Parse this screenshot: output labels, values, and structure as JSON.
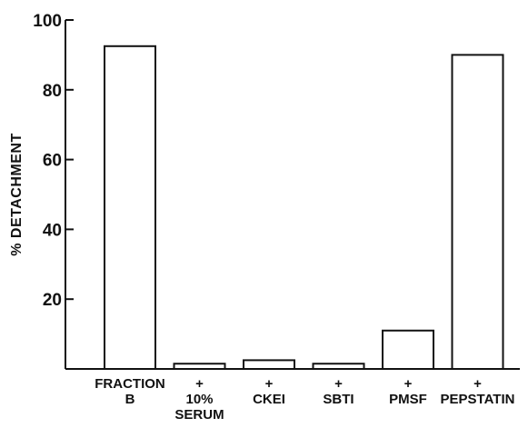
{
  "chart_data": {
    "type": "bar",
    "categories": [
      [
        "FRACTION",
        "B"
      ],
      [
        "+",
        "10%",
        "SERUM"
      ],
      [
        "+",
        "CKEI"
      ],
      [
        "+",
        "SBTI"
      ],
      [
        "+",
        "PMSF"
      ],
      [
        "+",
        "PEPSTATIN"
      ]
    ],
    "values": [
      92.5,
      1.5,
      2.5,
      1.5,
      11,
      90
    ],
    "title": "",
    "xlabel": "",
    "ylabel": "% DETACHMENT",
    "ylim": [
      0,
      100
    ],
    "yticks": [
      20,
      40,
      60,
      80,
      100
    ],
    "ytick_labels": [
      "20",
      "40",
      "60",
      "80",
      "100"
    ],
    "grid": false,
    "bar_fill": "#ffffff",
    "bar_stroke": "#111111"
  }
}
